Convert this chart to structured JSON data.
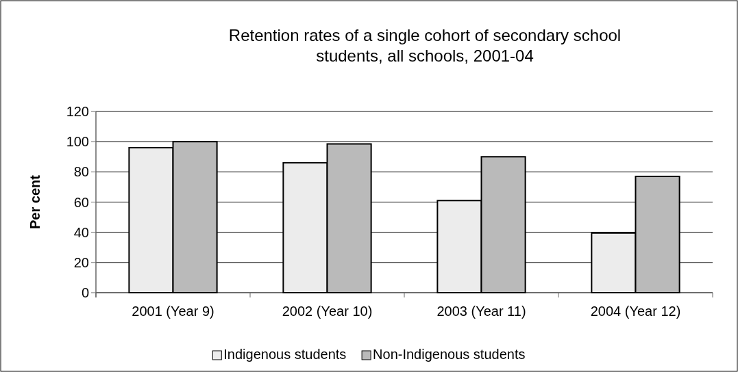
{
  "chart_data": {
    "type": "bar",
    "title": "Retention rates of a single cohort of secondary school students, all schools, 2001-04",
    "ylabel": "Per cent",
    "categories": [
      "2001 (Year 9)",
      "2002 (Year 10)",
      "2003 (Year 11)",
      "2004 (Year 12)"
    ],
    "series": [
      {
        "name": "Indigenous students",
        "color": "#ececec",
        "values": [
          96,
          86,
          61,
          39.5
        ]
      },
      {
        "name": "Non-Indigenous students",
        "color": "#bababa",
        "values": [
          100,
          98.5,
          90,
          77
        ]
      }
    ],
    "ylim": [
      0,
      120
    ],
    "yticks": [
      0,
      20,
      40,
      60,
      80,
      100,
      120
    ],
    "grid": "y",
    "legend": "bottom"
  }
}
